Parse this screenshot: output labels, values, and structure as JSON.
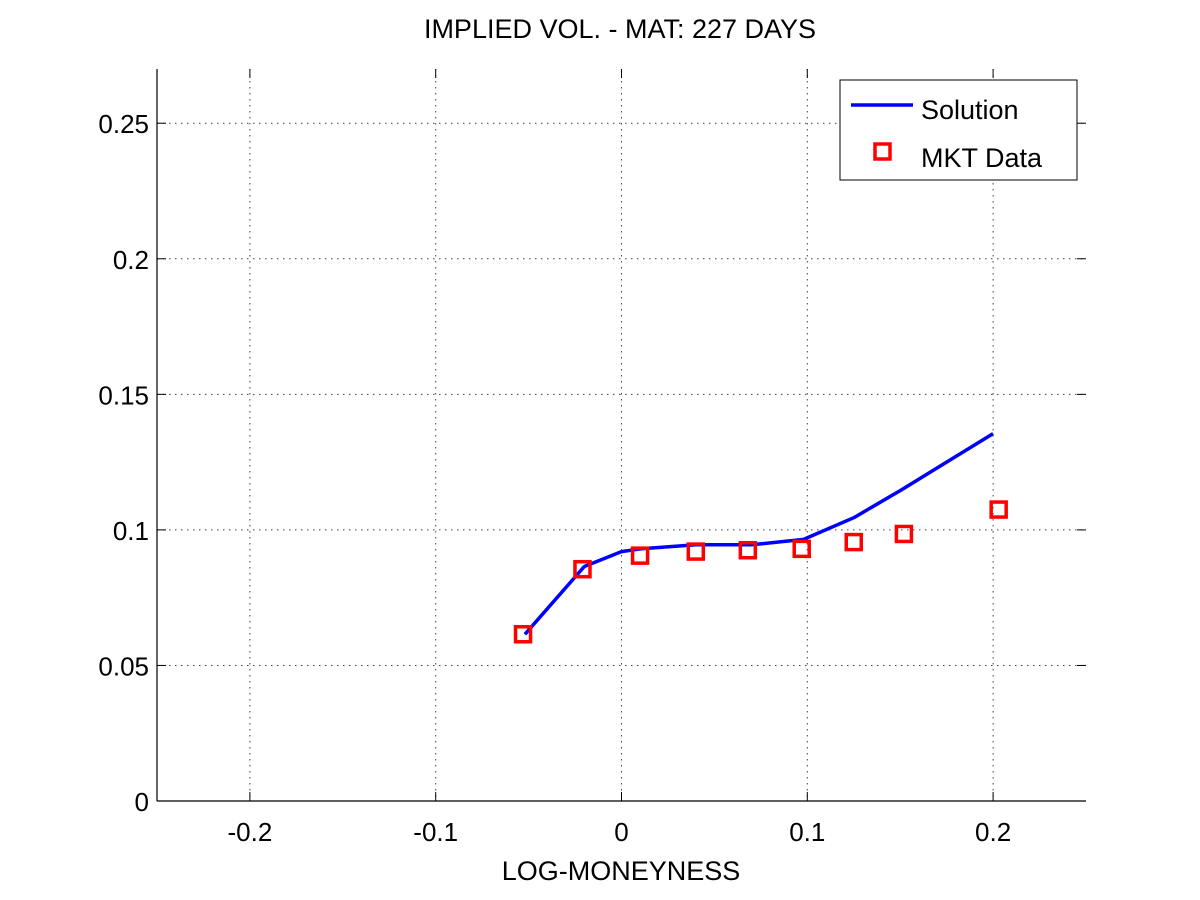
{
  "chart_data": {
    "type": "line",
    "title": "IMPLIED VOL. - MAT: 227 DAYS",
    "xlabel": "LOG-MONEYNESS",
    "ylabel": "",
    "xlim": [
      -0.25,
      0.25
    ],
    "ylim": [
      0,
      0.27
    ],
    "x_ticks": [
      -0.2,
      -0.1,
      0,
      0.1,
      0.2
    ],
    "x_tick_labels": [
      "-0.2",
      "-0.1",
      "0",
      "0.1",
      "0.2"
    ],
    "y_ticks": [
      0,
      0.05,
      0.1,
      0.15,
      0.2,
      0.25
    ],
    "y_tick_labels": [
      "0",
      "0.05",
      "0.1",
      "0.15",
      "0.2",
      "0.25"
    ],
    "grid": true,
    "legend_position": "top-right",
    "colors": {
      "solution": "#0000ff",
      "mkt_data": "#ff0000",
      "grid": "#444444",
      "axes": "#000000"
    },
    "series": [
      {
        "name": "Solution",
        "kind": "line",
        "x": [
          -0.052,
          -0.02,
          0.0,
          0.01,
          0.04,
          0.07,
          0.098,
          0.125,
          0.15,
          0.175,
          0.2
        ],
        "y": [
          0.0615,
          0.0865,
          0.092,
          0.093,
          0.0945,
          0.0945,
          0.0965,
          0.1045,
          0.1145,
          0.125,
          0.1355
        ]
      },
      {
        "name": "MKT Data",
        "kind": "scatter",
        "marker": "square",
        "x": [
          -0.053,
          -0.021,
          0.01,
          0.04,
          0.068,
          0.097,
          0.125,
          0.152,
          0.203
        ],
        "y": [
          0.0615,
          0.0855,
          0.0905,
          0.092,
          0.0925,
          0.093,
          0.0955,
          0.0985,
          0.1075
        ]
      }
    ]
  }
}
